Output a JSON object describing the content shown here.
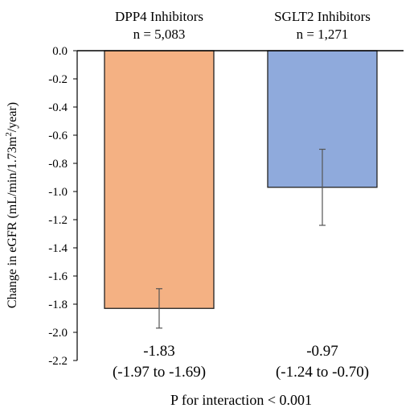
{
  "chart_data": {
    "type": "bar",
    "categories": [
      "DPP4 Inhibitors",
      "SGLT2 Inhibitors"
    ],
    "category_counts": [
      "n = 5,083",
      "n = 1,271"
    ],
    "values": [
      -1.83,
      -0.97
    ],
    "ci_low": [
      -1.97,
      -1.24
    ],
    "ci_high": [
      -1.69,
      -0.7
    ],
    "value_labels": [
      "-1.83",
      "-0.97"
    ],
    "ci_labels": [
      "(-1.97 to -1.69)",
      "(-1.24 to -0.70)"
    ],
    "colors": [
      "#F4B183",
      "#8FAADC"
    ],
    "ylabel_parts": [
      "Change in eGFR (mL/min/1.73m",
      "2",
      "/year)"
    ],
    "ylim": [
      -2.2,
      0.0
    ],
    "yticks": [
      0.0,
      -0.2,
      -0.4,
      -0.6,
      -0.8,
      -1.0,
      -1.2,
      -1.4,
      -1.6,
      -1.8,
      -2.0,
      -2.2
    ],
    "grid": false,
    "annotation": "P for interaction < 0.001"
  }
}
